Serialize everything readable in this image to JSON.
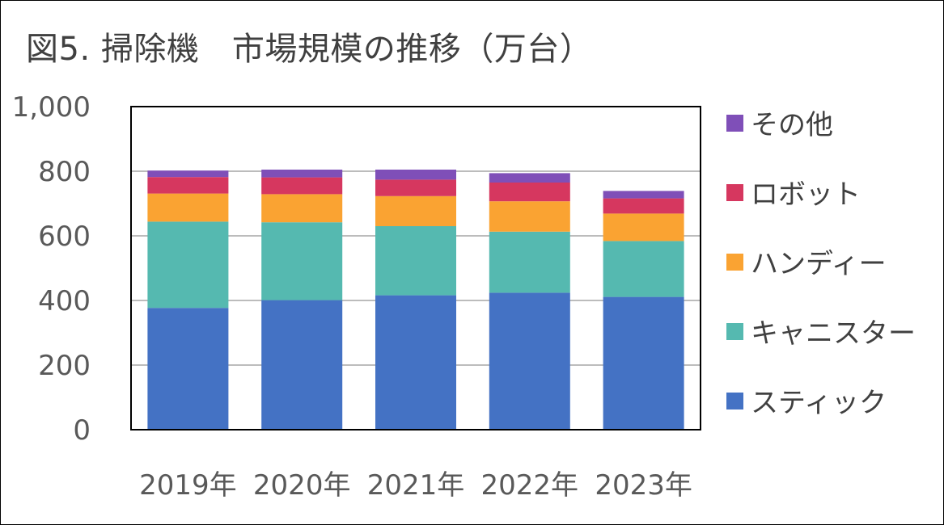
{
  "chart_data": {
    "type": "bar",
    "stacked": true,
    "title": "図5. 掃除機　市場規模の推移（万台）",
    "xlabel": "",
    "ylabel": "",
    "ylim": [
      0,
      1000
    ],
    "yticks": [
      "0",
      "200",
      "400",
      "600",
      "800",
      "1,000"
    ],
    "ytick_values": [
      0,
      200,
      400,
      600,
      800,
      1000
    ],
    "grid": true,
    "legend_position": "right",
    "categories": [
      "2019年",
      "2020年",
      "2021年",
      "2022年",
      "2023年"
    ],
    "series": [
      {
        "name": "スティック",
        "color": "#4472C4",
        "values": [
          377,
          401,
          416,
          424,
          411
        ]
      },
      {
        "name": "キャニスター",
        "color": "#55B9B0",
        "values": [
          267,
          241,
          214,
          189,
          173
        ]
      },
      {
        "name": "ハンディー",
        "color": "#FAA332",
        "values": [
          87,
          87,
          93,
          94,
          85
        ]
      },
      {
        "name": "ロボット",
        "color": "#D6375F",
        "values": [
          51,
          52,
          51,
          58,
          47
        ]
      },
      {
        "name": "その他",
        "color": "#7F4FB8",
        "values": [
          20,
          24,
          31,
          29,
          23
        ]
      }
    ],
    "legend_order": [
      "その他",
      "ロボット",
      "ハンディー",
      "キャニスター",
      "スティック"
    ]
  }
}
